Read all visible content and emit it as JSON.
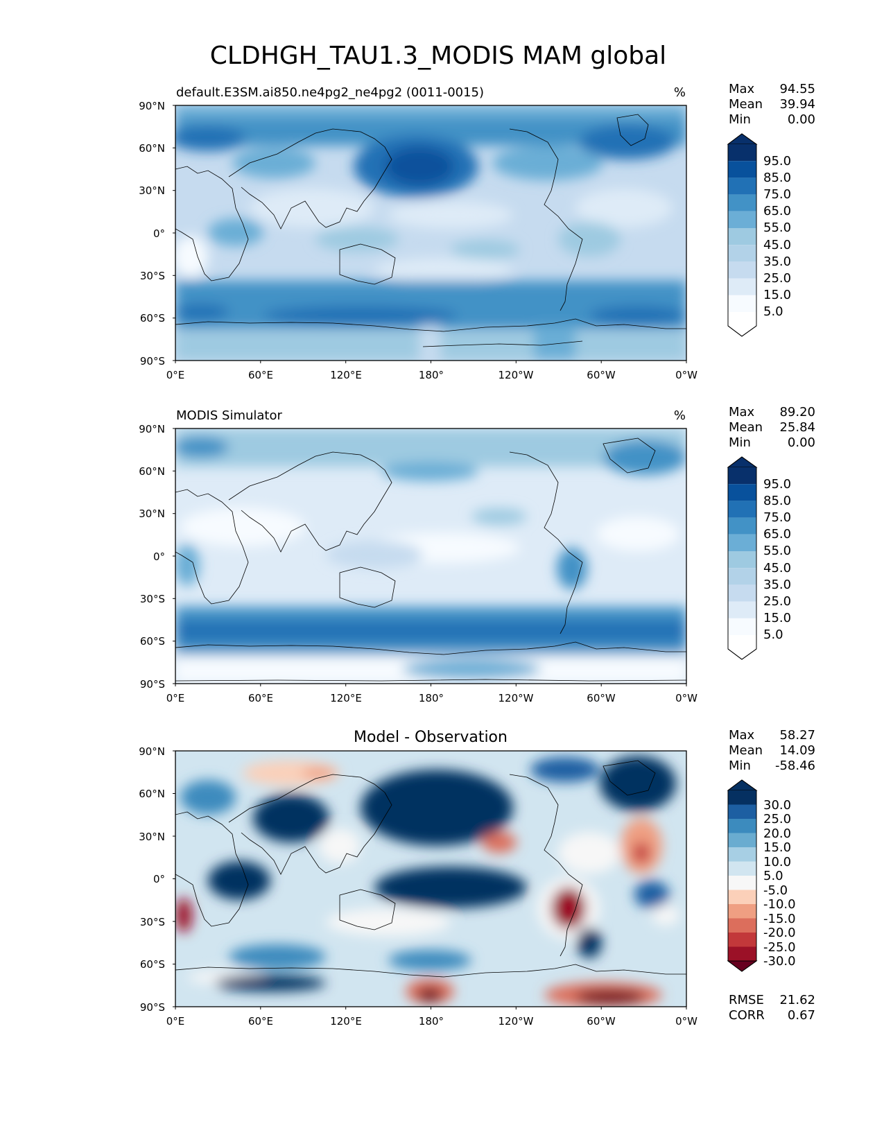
{
  "figure": {
    "title": "CLDHGH_TAU1.3_MODIS MAM global"
  },
  "x_ticks": [
    "0°E",
    "60°E",
    "120°E",
    "180°",
    "120°W",
    "60°W",
    "0°W"
  ],
  "y_ticks": [
    "90°N",
    "60°N",
    "30°N",
    "0°",
    "30°S",
    "60°S",
    "90°S"
  ],
  "colors": {
    "blues": [
      "#f7fbff",
      "#deebf7",
      "#c6dbef",
      "#b2d2e8",
      "#9ecae1",
      "#6baed6",
      "#4292c6",
      "#2171b5",
      "#08519c",
      "#08306b"
    ],
    "diverging": [
      "#67001f",
      "#9b1127",
      "#c2383a",
      "#dc6e5c",
      "#ef9f82",
      "#fbd0b9",
      "#f7f7f7",
      "#d1e5f0",
      "#a7cfe4",
      "#6aacd0",
      "#3c8bbe",
      "#1d5fa2",
      "#053061"
    ]
  },
  "chart_data": [
    {
      "type": "heatmap",
      "title": "default.E3SM.ai850.ne4pg2_ne4pg2 (0011-0015)",
      "units": "%",
      "stats": {
        "max_label": "Max",
        "max": "94.55",
        "mean_label": "Mean",
        "mean": "39.94",
        "min_label": "Min",
        "min": "0.00"
      },
      "colorbar_ticks": [
        "95.0",
        "85.0",
        "75.0",
        "65.0",
        "55.0",
        "45.0",
        "35.0",
        "25.0",
        "15.0",
        "5.0"
      ],
      "xlim": [
        0,
        360
      ],
      "ylim": [
        -90,
        90
      ],
      "zonal_mean_profile": {
        "lat": [
          85,
          70,
          55,
          40,
          20,
          0,
          -20,
          -40,
          -55,
          -65,
          -80
        ],
        "value": [
          40,
          65,
          70,
          50,
          25,
          30,
          25,
          55,
          72,
          68,
          35
        ]
      }
    },
    {
      "type": "heatmap",
      "title": "MODIS Simulator",
      "units": "%",
      "stats": {
        "max_label": "Max",
        "max": "89.20",
        "mean_label": "Mean",
        "mean": "25.84",
        "min_label": "Min",
        "min": "0.00"
      },
      "colorbar_ticks": [
        "95.0",
        "85.0",
        "75.0",
        "65.0",
        "55.0",
        "45.0",
        "35.0",
        "25.0",
        "15.0",
        "5.0"
      ],
      "xlim": [
        0,
        360
      ],
      "ylim": [
        -90,
        90
      ],
      "zonal_mean_profile": {
        "lat": [
          85,
          70,
          55,
          40,
          20,
          0,
          -20,
          -40,
          -55,
          -65,
          -80
        ],
        "value": [
          45,
          50,
          35,
          25,
          10,
          15,
          15,
          35,
          60,
          55,
          10
        ]
      }
    },
    {
      "type": "heatmap",
      "title": "Model - Observation",
      "stats": {
        "max_label": "Max",
        "max": "58.27",
        "mean_label": "Mean",
        "mean": "14.09",
        "min_label": "Min",
        "min": "-58.46"
      },
      "colorbar_ticks": [
        "30.0",
        "25.0",
        "20.0",
        "15.0",
        "10.0",
        "5.0",
        "-5.0",
        "-10.0",
        "-15.0",
        "-20.0",
        "-25.0",
        "-30.0"
      ],
      "xlim": [
        0,
        360
      ],
      "ylim": [
        -90,
        90
      ],
      "rmse_label": "RMSE",
      "rmse": "21.62",
      "corr_label": "CORR",
      "corr": "0.67"
    }
  ]
}
